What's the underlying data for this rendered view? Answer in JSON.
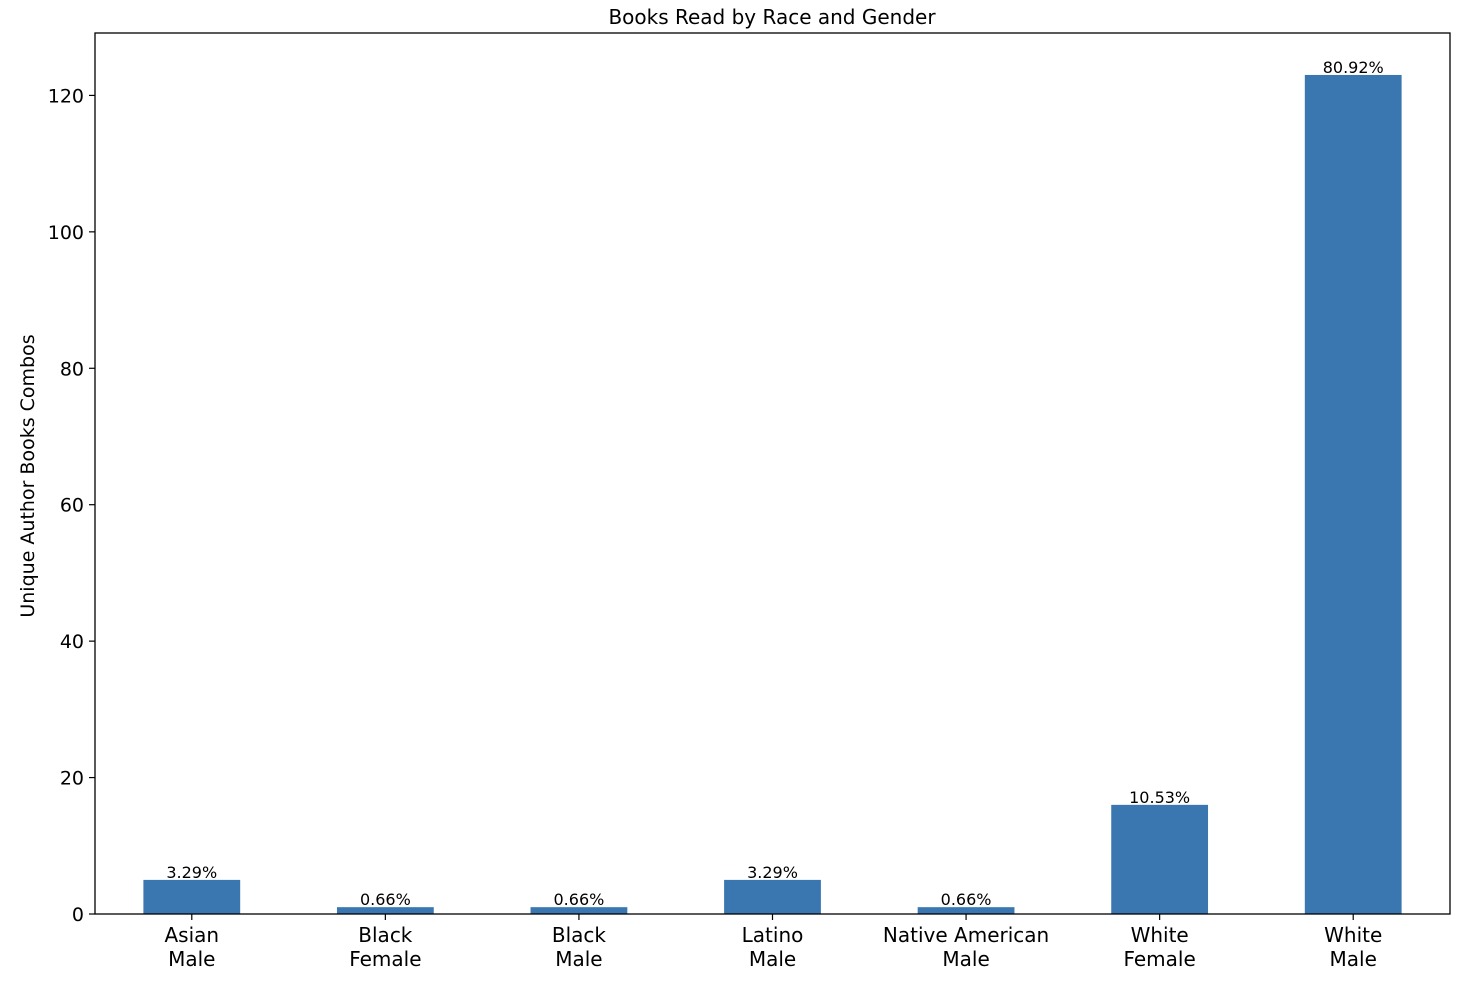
{
  "chart_data": {
    "type": "bar",
    "title": "Books Read by Race and Gender",
    "xlabel": "",
    "ylabel": "Unique Author Books Combos",
    "categories": [
      [
        "Asian",
        "Male"
      ],
      [
        "Black",
        "Female"
      ],
      [
        "Black",
        "Male"
      ],
      [
        "Latino",
        "Male"
      ],
      [
        "Native American",
        "Male"
      ],
      [
        "White",
        "Female"
      ],
      [
        "White",
        "Male"
      ]
    ],
    "values": [
      5,
      1,
      1,
      5,
      1,
      16,
      123
    ],
    "data_labels": [
      "3.29%",
      "0.66%",
      "0.66%",
      "3.29%",
      "0.66%",
      "10.53%",
      "80.92%"
    ],
    "yticks": [
      0,
      20,
      40,
      60,
      80,
      100,
      120
    ],
    "ylim": [
      0,
      129.15
    ],
    "grid": false,
    "legend": "none",
    "bar_color": "#3a76af"
  }
}
